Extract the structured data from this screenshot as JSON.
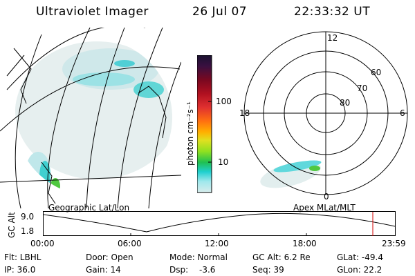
{
  "header": {
    "title": "Ultraviolet Imager",
    "date": "26 Jul 07",
    "time": "22:33:32 UT"
  },
  "geo_panel": {
    "caption": "Geographic Lat/Lon"
  },
  "polar_panel": {
    "caption": "Apex MLat/MLT",
    "mlt_labels": {
      "top": "12",
      "left": "18",
      "right": "6",
      "bottom": "0"
    },
    "lat_labels": [
      "60",
      "70",
      "80"
    ]
  },
  "colorbar": {
    "unit_label": "photon cm⁻²s⁻¹",
    "ticks": [
      "100",
      "10"
    ],
    "colors_top_to_bottom": [
      "#1a1230",
      "#3a1040",
      "#7a0820",
      "#b01020",
      "#e03030",
      "#ff7010",
      "#ffb000",
      "#e0e020",
      "#90e020",
      "#20c050",
      "#20d0d0",
      "#a0e8ec",
      "#d8ecec"
    ]
  },
  "altitude_plot": {
    "ylabel": "GC Alt",
    "yticks": [
      "9.0",
      "1.8"
    ],
    "xticks": [
      "00:00",
      "06:00",
      "12:00",
      "18:00",
      "23:59"
    ]
  },
  "info": {
    "flt": "Flt: LBHL",
    "ip": "IP: 36.0",
    "door": "Door: Open",
    "gain": "Gain: 14",
    "mode": "Mode: Normal",
    "dsp_label": "Dsp:",
    "dsp_value": "-3.6",
    "gcalt": "GC Alt: 6.2 Re",
    "seq": "Seq: 39",
    "glat": "GLat: -49.4",
    "glon": "GLon: 22.2"
  }
}
